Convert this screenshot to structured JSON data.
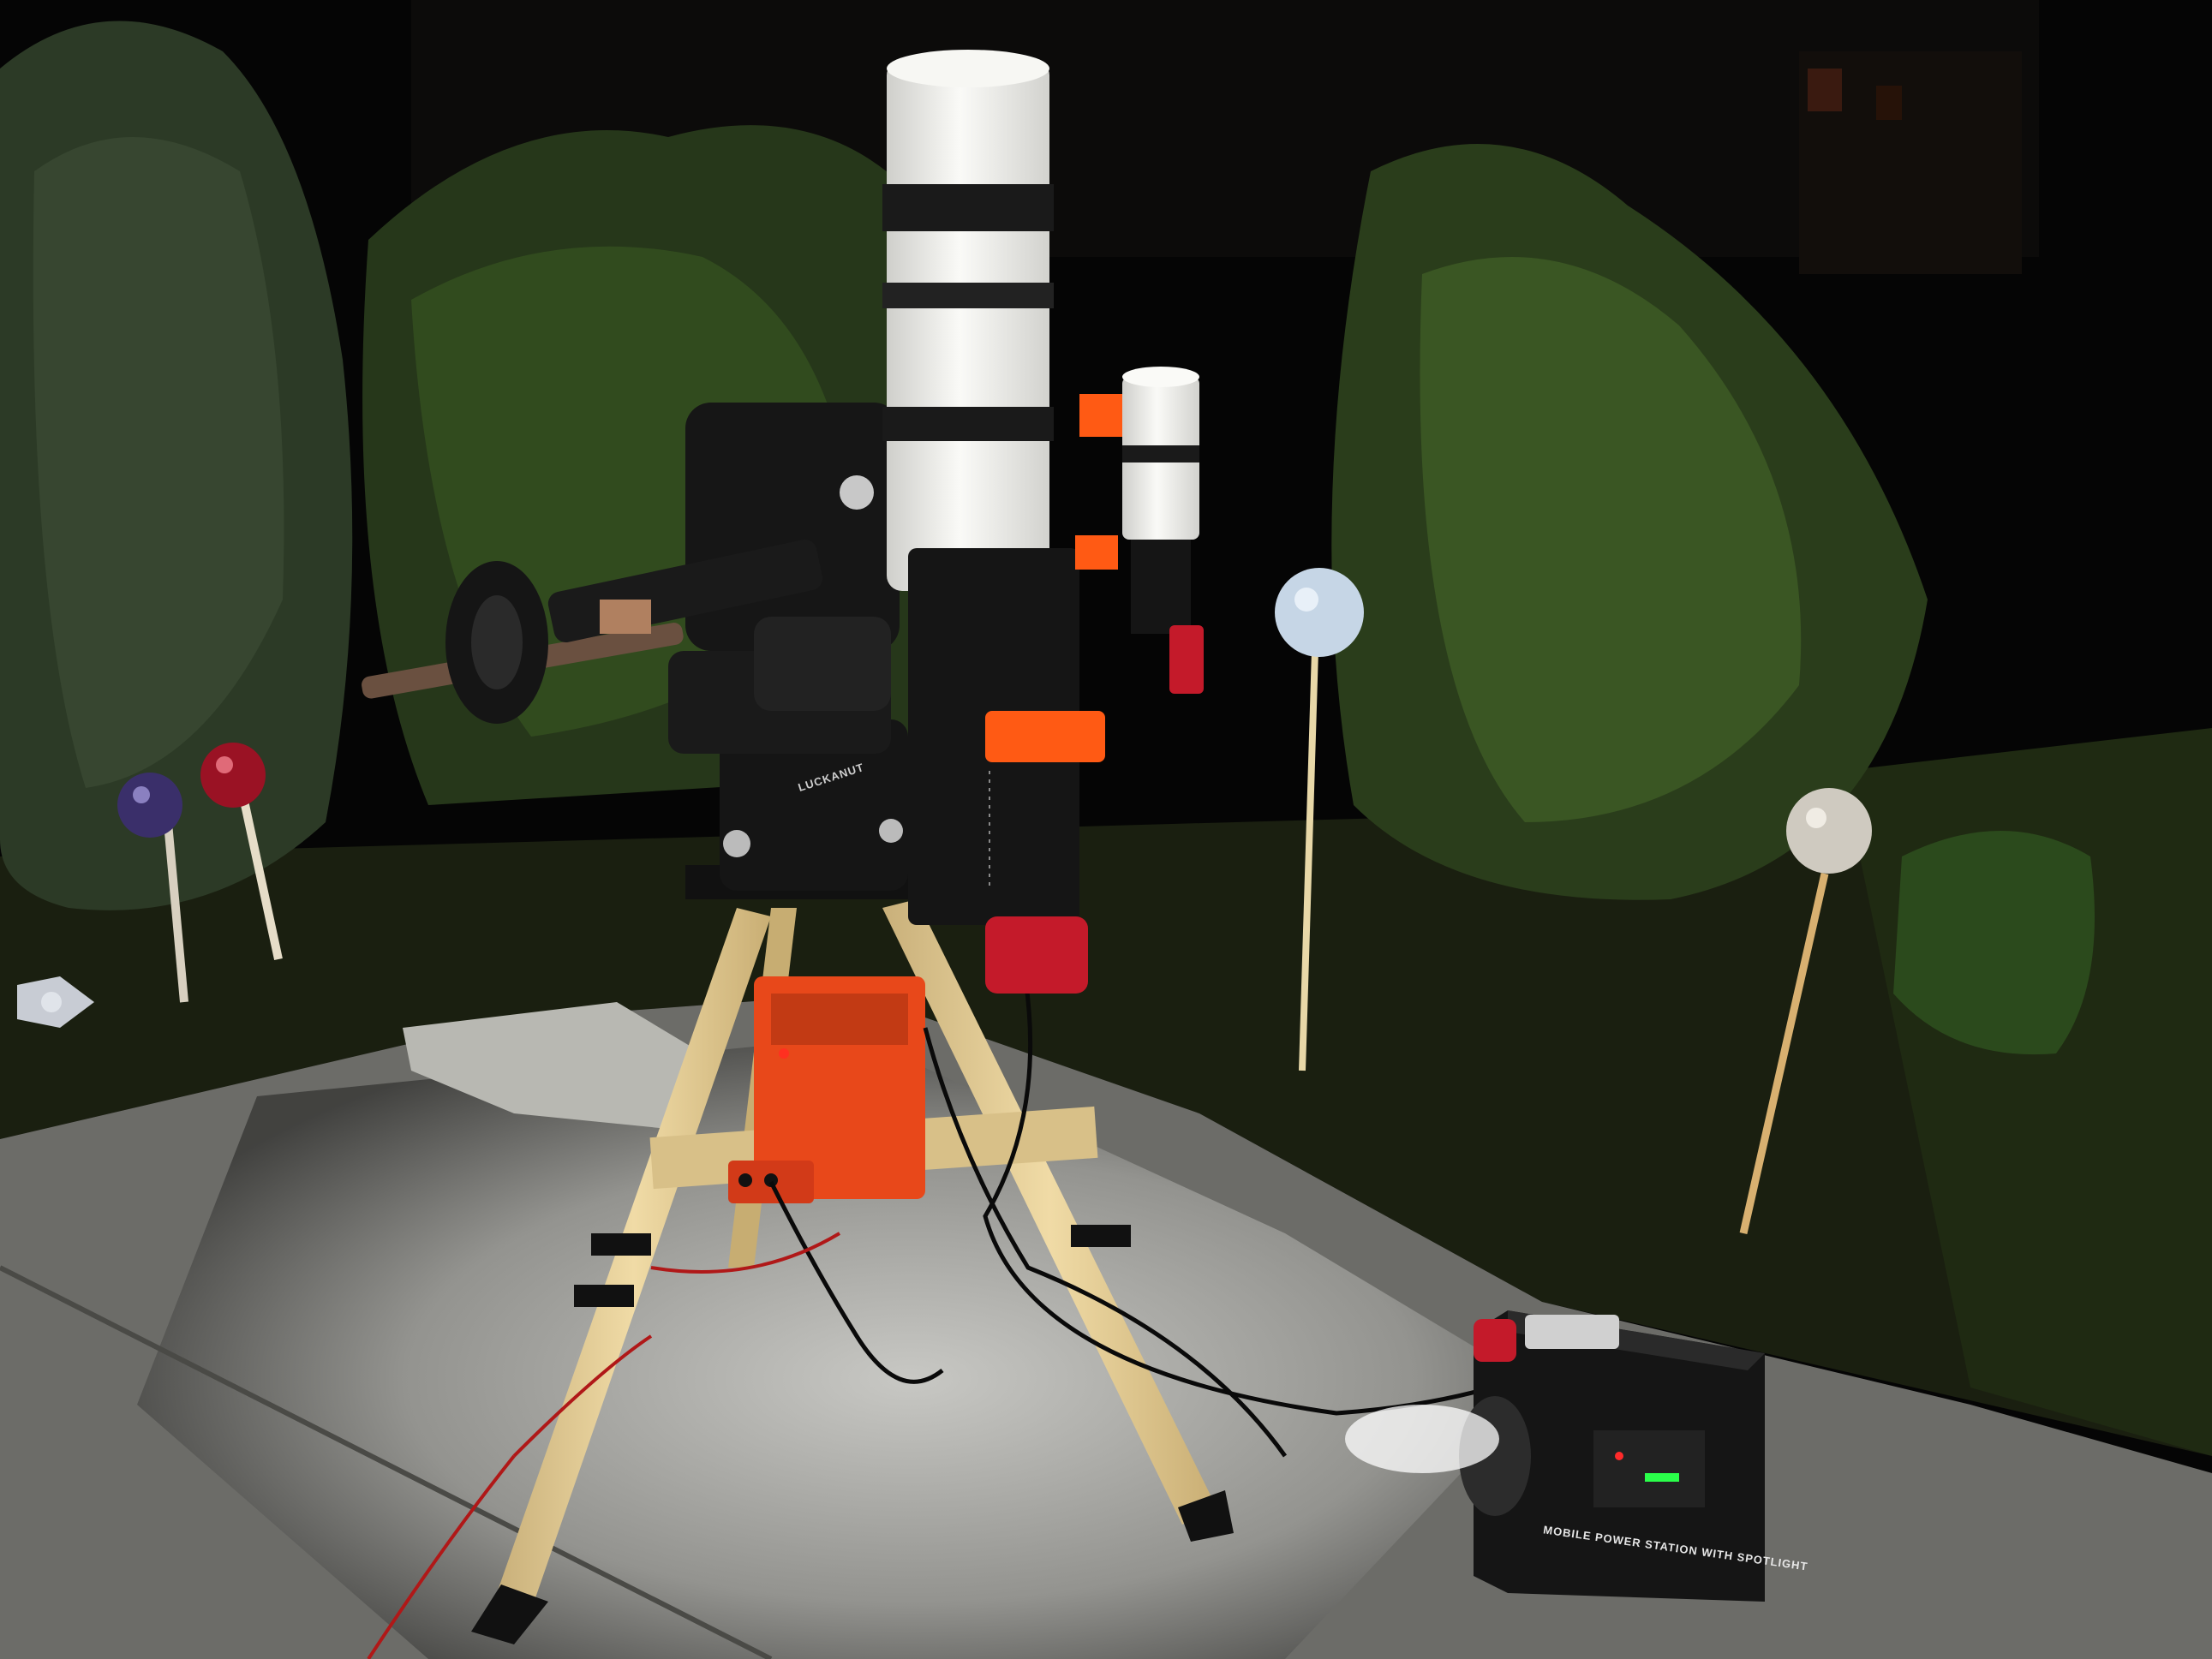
{
  "photo": {
    "mount_brand_label": "LUCKANUT",
    "power_station_label": "MOBILE POWER STATION WITH SPOTLIGHT"
  },
  "colors": {
    "sky": "#050505",
    "foliage_dark": "#1c2a12",
    "foliage_light": "#3e5a24",
    "pavement": "#8a8a86",
    "tube_white": "#f2f2ee",
    "accent_orange": "#ff5a14",
    "accent_red": "#c4182a",
    "tripod_wood": "#e6cf96",
    "black_hardware": "#111111"
  }
}
